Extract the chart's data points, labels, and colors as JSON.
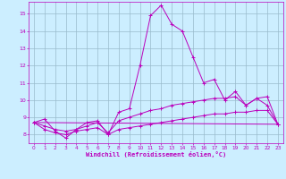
{
  "xlabel": "Windchill (Refroidissement éolien,°C)",
  "background_color": "#cceeff",
  "grid_color": "#99bbcc",
  "line_color": "#bb00bb",
  "xlim": [
    -0.5,
    23.5
  ],
  "ylim": [
    7.5,
    15.7
  ],
  "yticks": [
    8,
    9,
    10,
    11,
    12,
    13,
    14,
    15
  ],
  "xticks": [
    0,
    1,
    2,
    3,
    4,
    5,
    6,
    7,
    8,
    9,
    10,
    11,
    12,
    13,
    14,
    15,
    16,
    17,
    18,
    19,
    20,
    21,
    22,
    23
  ],
  "series": [
    {
      "x": [
        0,
        1,
        2,
        3,
        4,
        5,
        6,
        7,
        8,
        9,
        10,
        11,
        12,
        13,
        14,
        15,
        16,
        17,
        18,
        19,
        20,
        21,
        22,
        23
      ],
      "y": [
        8.7,
        8.9,
        8.2,
        7.8,
        8.3,
        8.7,
        8.8,
        8.0,
        9.3,
        9.5,
        12.0,
        14.9,
        15.5,
        14.4,
        14.0,
        12.5,
        11.0,
        11.2,
        10.0,
        10.5,
        9.7,
        10.1,
        9.7,
        8.6
      ],
      "has_markers": true
    },
    {
      "x": [
        0,
        1,
        2,
        3,
        4,
        5,
        6,
        7,
        8,
        9,
        10,
        11,
        12,
        13,
        14,
        15,
        16,
        17,
        18,
        19,
        20,
        21,
        22,
        23
      ],
      "y": [
        8.7,
        8.5,
        8.3,
        8.2,
        8.3,
        8.5,
        8.7,
        8.1,
        8.8,
        9.0,
        9.2,
        9.4,
        9.5,
        9.7,
        9.8,
        9.9,
        10.0,
        10.1,
        10.1,
        10.2,
        9.7,
        10.1,
        10.2,
        8.6
      ],
      "has_markers": true
    },
    {
      "x": [
        0,
        1,
        2,
        3,
        4,
        5,
        6,
        7,
        8,
        9,
        10,
        11,
        12,
        13,
        14,
        15,
        16,
        17,
        18,
        19,
        20,
        21,
        22,
        23
      ],
      "y": [
        8.7,
        8.3,
        8.1,
        8.0,
        8.2,
        8.3,
        8.4,
        8.0,
        8.3,
        8.4,
        8.5,
        8.6,
        8.7,
        8.8,
        8.9,
        9.0,
        9.1,
        9.2,
        9.2,
        9.3,
        9.3,
        9.4,
        9.4,
        8.6
      ],
      "has_markers": true
    },
    {
      "x": [
        0,
        23
      ],
      "y": [
        8.7,
        8.6
      ],
      "has_markers": false
    }
  ]
}
